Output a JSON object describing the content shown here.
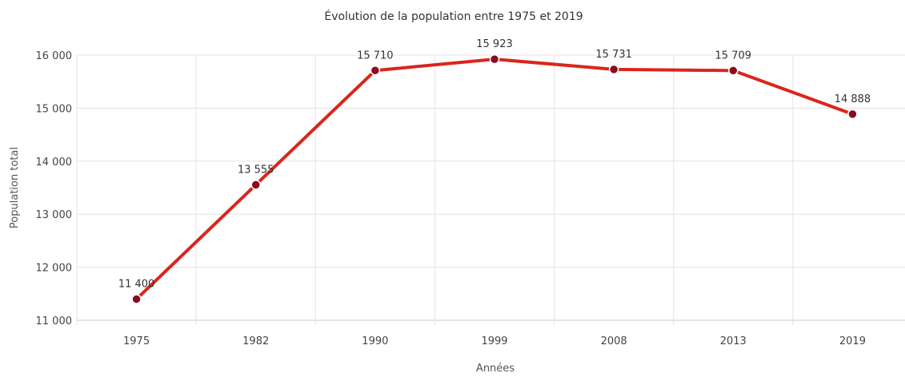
{
  "chart_data": {
    "type": "line",
    "title": "Évolution de la population entre 1975 et 2019",
    "xlabel": "Années",
    "ylabel": "Population total",
    "categories": [
      "1975",
      "1982",
      "1990",
      "1999",
      "2008",
      "2013",
      "2019"
    ],
    "series": [
      {
        "values": [
          11400,
          13555,
          15710,
          15923,
          15731,
          15709,
          14888
        ],
        "labels": [
          "11 400",
          "13 555",
          "15 710",
          "15 923",
          "15 731",
          "15 709",
          "14 888"
        ]
      }
    ],
    "ylim": [
      11000,
      16000
    ],
    "yticks": [
      11000,
      12000,
      13000,
      14000,
      15000,
      16000
    ],
    "ytick_labels": [
      "11 000",
      "12 000",
      "13 000",
      "14 000",
      "15 000",
      "16 000"
    ],
    "grid": true,
    "legend": "none",
    "colors": {
      "line": "#d9261c",
      "marker": "#8b0a1e"
    }
  }
}
